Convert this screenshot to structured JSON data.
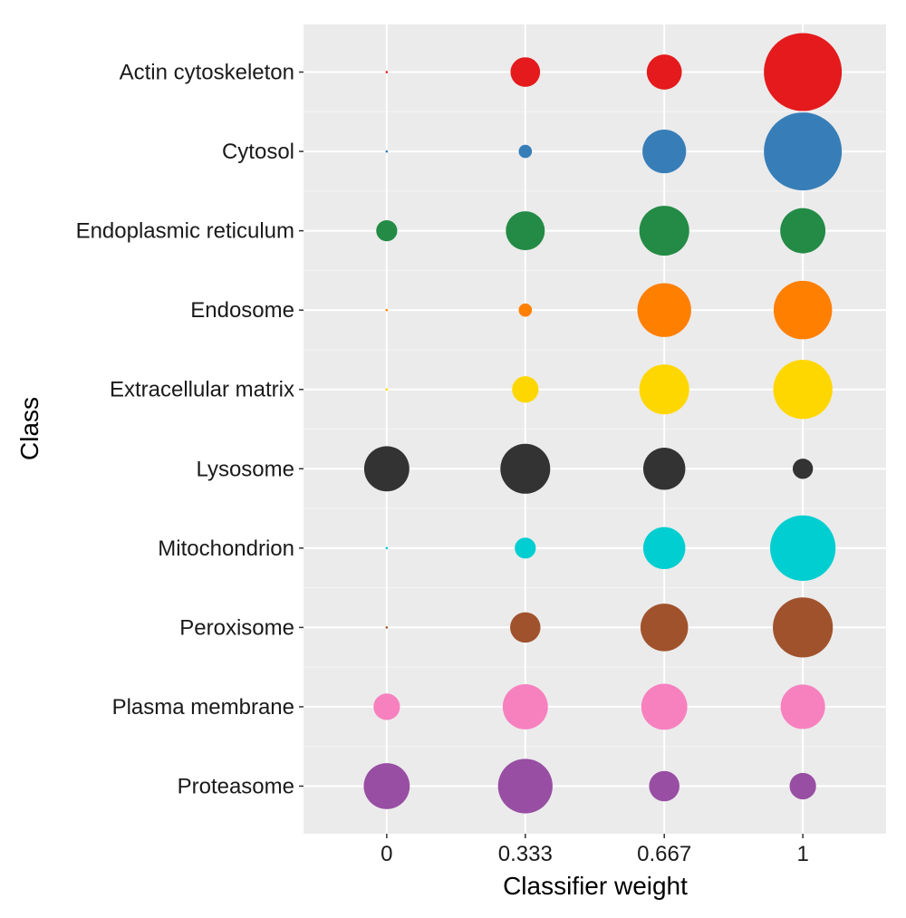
{
  "chart_data": {
    "type": "scatter",
    "title": "",
    "xlabel": "Classifier weight",
    "ylabel": "Class",
    "x_ticks": [
      "0",
      "0.333",
      "0.667",
      "1"
    ],
    "x_values": [
      0,
      0.333,
      0.667,
      1
    ],
    "xlim": [
      -0.2,
      1.2
    ],
    "grid": true,
    "legend": "none",
    "size_encoding": "relative frequency (0–1, larger circle = larger value)",
    "series": [
      {
        "name": "Actin cytoskeleton",
        "color": "#E41A1C",
        "sizes": [
          0.02,
          0.38,
          0.45,
          1.0
        ]
      },
      {
        "name": "Cytosol",
        "color": "#377EB8",
        "sizes": [
          0.02,
          0.17,
          0.56,
          1.0
        ]
      },
      {
        "name": "Endoplasmic reticulum",
        "color": "#238B45",
        "sizes": [
          0.27,
          0.5,
          0.64,
          0.58
        ]
      },
      {
        "name": "Endosome",
        "color": "#FF7F00",
        "sizes": [
          0.02,
          0.17,
          0.69,
          0.75
        ]
      },
      {
        "name": "Extracellular matrix",
        "color": "#FFD700",
        "sizes": [
          0.02,
          0.34,
          0.64,
          0.76
        ]
      },
      {
        "name": "Lysosome",
        "color": "#333333",
        "sizes": [
          0.58,
          0.64,
          0.54,
          0.26
        ]
      },
      {
        "name": "Mitochondrion",
        "color": "#00CED1",
        "sizes": [
          0.02,
          0.27,
          0.54,
          0.84
        ]
      },
      {
        "name": "Peroxisome",
        "color": "#A0522D",
        "sizes": [
          0.02,
          0.39,
          0.61,
          0.77
        ]
      },
      {
        "name": "Plasma membrane",
        "color": "#F781BF",
        "sizes": [
          0.34,
          0.58,
          0.59,
          0.57
        ]
      },
      {
        "name": "Proteasome",
        "color": "#984EA3",
        "sizes": [
          0.59,
          0.7,
          0.39,
          0.34
        ]
      }
    ]
  }
}
